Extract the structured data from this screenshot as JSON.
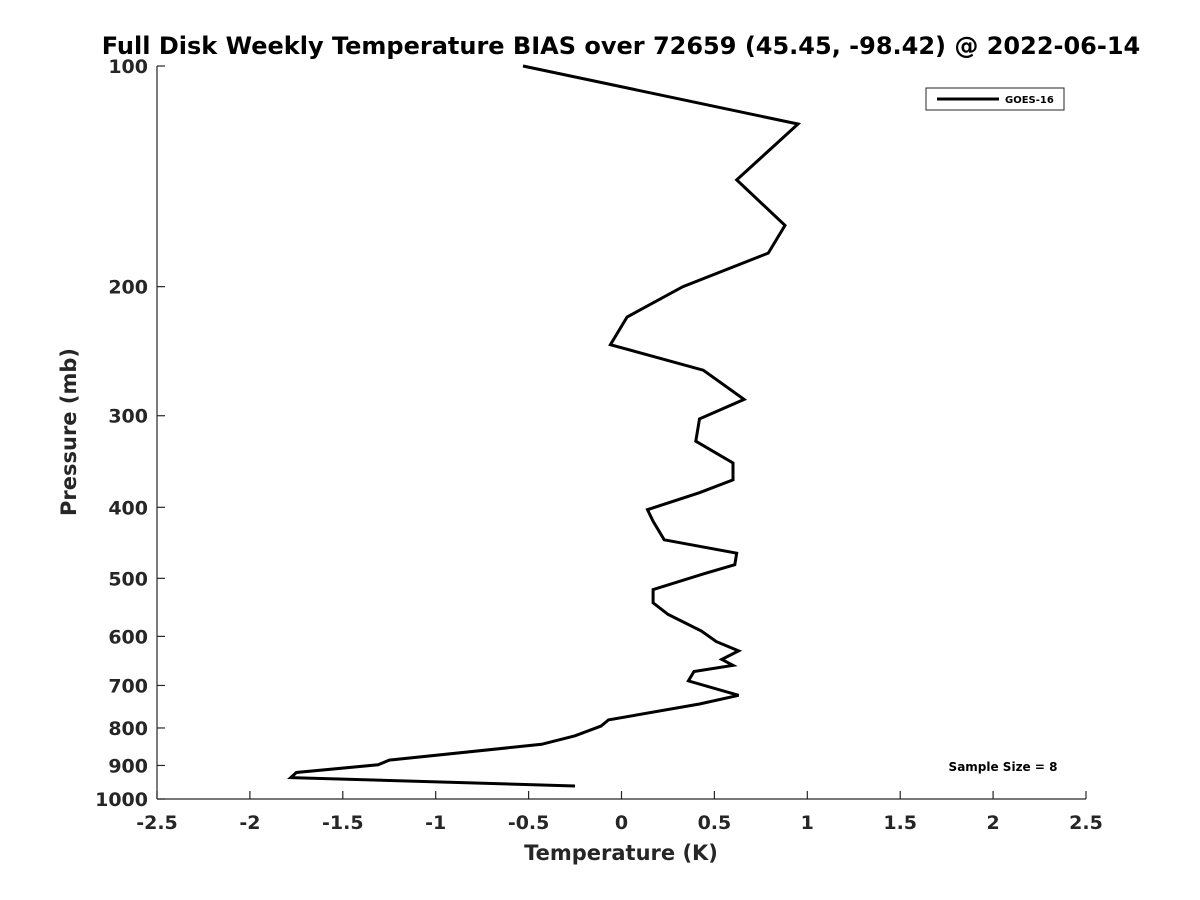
{
  "chart_data": {
    "type": "line",
    "title": "Full Disk Weekly Temperature BIAS over 72659 (45.45, -98.42) @ 2022-06-14",
    "xlabel": "Temperature (K)",
    "ylabel": "Pressure (mb)",
    "xlim": [
      -2.5,
      2.5
    ],
    "ylim": [
      100,
      1000
    ],
    "y_scale": "log",
    "y_reversed": true,
    "x_ticks": [
      -2.5,
      -2,
      -1.5,
      -1,
      -0.5,
      0,
      0.5,
      1,
      1.5,
      2,
      2.5
    ],
    "x_tick_labels": [
      "-2.5",
      "-2",
      "-1.5",
      "-1",
      "-0.5",
      "0",
      "0.5",
      "1",
      "1.5",
      "2",
      "2.5"
    ],
    "y_ticks": [
      100,
      200,
      300,
      400,
      500,
      600,
      700,
      800,
      900,
      1000
    ],
    "y_tick_labels": [
      "100",
      "200",
      "300",
      "400",
      "500",
      "600",
      "700",
      "800",
      "900",
      "1000"
    ],
    "grid": false,
    "legend_position": "top-right",
    "annotation": "Sample Size = 8",
    "series": [
      {
        "name": "GOES-16",
        "color": "#000000",
        "points": [
          {
            "x": -0.53,
            "p": 100
          },
          {
            "x": 0.95,
            "p": 120
          },
          {
            "x": 0.62,
            "p": 143
          },
          {
            "x": 0.88,
            "p": 165
          },
          {
            "x": 0.79,
            "p": 180
          },
          {
            "x": 0.33,
            "p": 200
          },
          {
            "x": 0.03,
            "p": 220
          },
          {
            "x": -0.06,
            "p": 240
          },
          {
            "x": 0.44,
            "p": 260
          },
          {
            "x": 0.66,
            "p": 285
          },
          {
            "x": 0.42,
            "p": 303
          },
          {
            "x": 0.4,
            "p": 325
          },
          {
            "x": 0.6,
            "p": 348
          },
          {
            "x": 0.6,
            "p": 367
          },
          {
            "x": 0.42,
            "p": 382
          },
          {
            "x": 0.14,
            "p": 403
          },
          {
            "x": 0.17,
            "p": 418
          },
          {
            "x": 0.23,
            "p": 443
          },
          {
            "x": 0.62,
            "p": 462
          },
          {
            "x": 0.61,
            "p": 479
          },
          {
            "x": 0.44,
            "p": 493
          },
          {
            "x": 0.17,
            "p": 518
          },
          {
            "x": 0.17,
            "p": 540
          },
          {
            "x": 0.25,
            "p": 560
          },
          {
            "x": 0.43,
            "p": 590
          },
          {
            "x": 0.51,
            "p": 610
          },
          {
            "x": 0.63,
            "p": 628
          },
          {
            "x": 0.54,
            "p": 645
          },
          {
            "x": 0.6,
            "p": 657
          },
          {
            "x": 0.39,
            "p": 670
          },
          {
            "x": 0.36,
            "p": 690
          },
          {
            "x": 0.63,
            "p": 722
          },
          {
            "x": 0.42,
            "p": 742
          },
          {
            "x": -0.07,
            "p": 780
          },
          {
            "x": -0.11,
            "p": 795
          },
          {
            "x": -0.25,
            "p": 820
          },
          {
            "x": -0.43,
            "p": 842
          },
          {
            "x": -1.25,
            "p": 885
          },
          {
            "x": -1.31,
            "p": 898
          },
          {
            "x": -1.75,
            "p": 920
          },
          {
            "x": -1.78,
            "p": 935
          },
          {
            "x": -0.25,
            "p": 960
          }
        ]
      }
    ]
  }
}
